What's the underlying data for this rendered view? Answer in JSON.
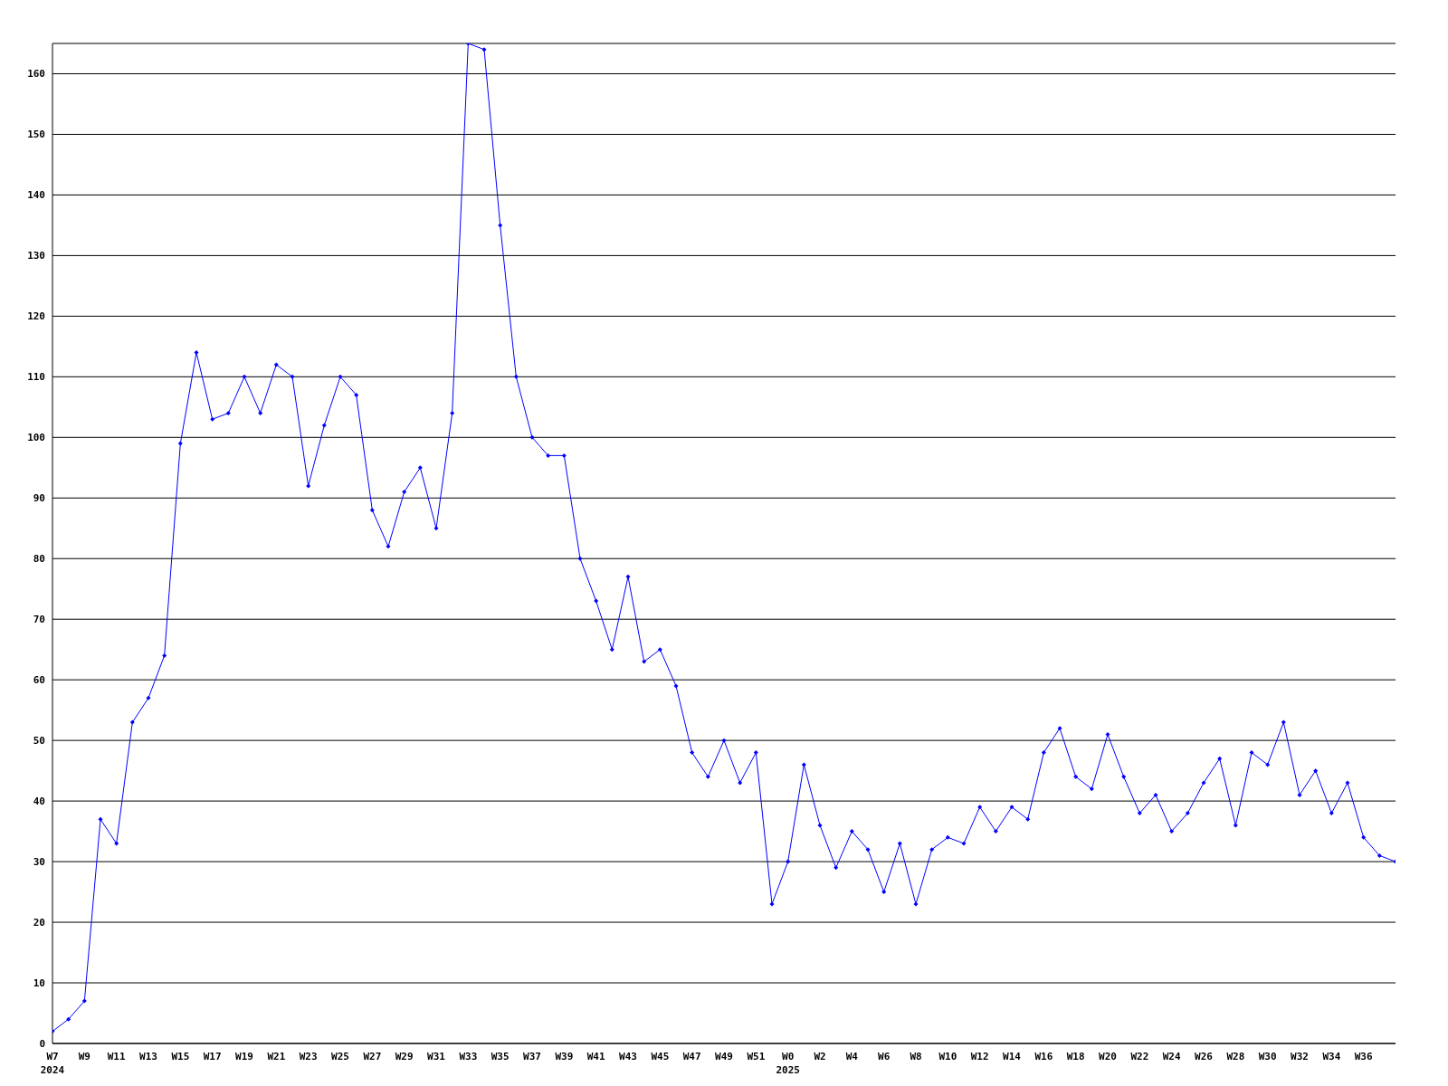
{
  "chart_data": {
    "type": "line",
    "categories": [
      "W7\n2024",
      null,
      "W9",
      null,
      "W11",
      null,
      "W13",
      null,
      "W15",
      null,
      "W17",
      null,
      "W19",
      null,
      "W21",
      null,
      "W23",
      null,
      "W25",
      null,
      "W27",
      null,
      "W29",
      null,
      "W31",
      null,
      "W33",
      null,
      "W35",
      null,
      "W37",
      null,
      "W39",
      null,
      "W41",
      null,
      "W43",
      null,
      "W45",
      null,
      "W47",
      null,
      "W49",
      null,
      "W51",
      null,
      "W0\n2025",
      null,
      "W2",
      null,
      "W4",
      null,
      "W6",
      null,
      "W8",
      null,
      "W10",
      null,
      "W12",
      null,
      "W14",
      null,
      "W16",
      null,
      "W18",
      null,
      "W20",
      null,
      "W22",
      null,
      "W24",
      null,
      "W26",
      null,
      "W28",
      null,
      "W30",
      null,
      "W32",
      null,
      "W34",
      null,
      "W36",
      null,
      null
    ],
    "series": [
      {
        "color": "#0000ff",
        "values": [
          2,
          4,
          7,
          37,
          33,
          53,
          57,
          64,
          99,
          114,
          103,
          104,
          110,
          104,
          112,
          110,
          92,
          102,
          110,
          107,
          88,
          82,
          91,
          95,
          85,
          104,
          165,
          164,
          135,
          110,
          100,
          97,
          97,
          80,
          73,
          65,
          77,
          63,
          65,
          59,
          48,
          44,
          50,
          43,
          48,
          23,
          30,
          46,
          36,
          29,
          35,
          32,
          25,
          33,
          23,
          32,
          34,
          33,
          39,
          35,
          39,
          37,
          48,
          52,
          44,
          42,
          51,
          44,
          38,
          41,
          35,
          38,
          43,
          47,
          36,
          48,
          46,
          53,
          41,
          45,
          38,
          43,
          34,
          31,
          30
        ]
      }
    ],
    "ylim": [
      0,
      165
    ],
    "yticks": [
      0,
      10,
      20,
      30,
      40,
      50,
      60,
      70,
      80,
      90,
      100,
      110,
      120,
      130,
      140,
      150,
      160
    ],
    "grid": "y",
    "legend": false,
    "marker": "diamond",
    "line_style": "solid"
  }
}
